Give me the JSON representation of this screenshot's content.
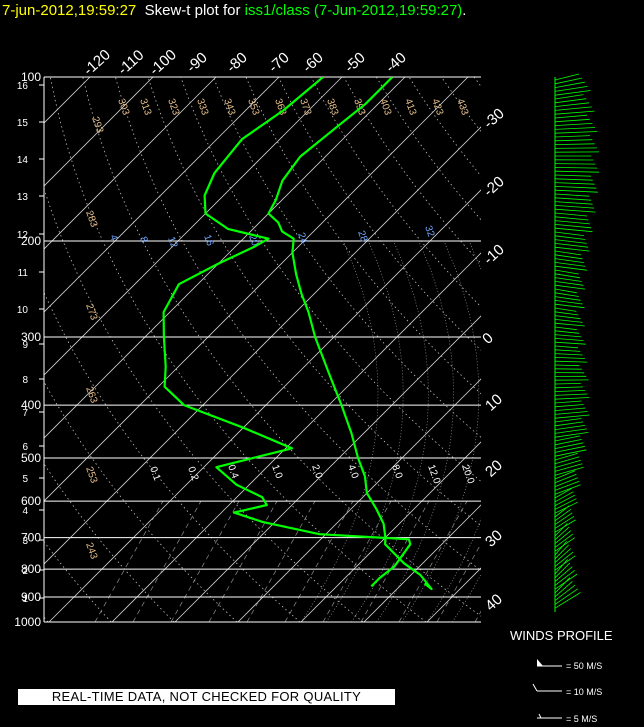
{
  "title": {
    "date": "7-jun-2012,19:59:27",
    "prefix": "Skew-t plot for",
    "station": "iss1/class (7-Jun-2012,19:59:27)",
    "suffix": "."
  },
  "disclaimer": "REAL-TIME DATA, NOT CHECKED FOR QUALITY",
  "winds_legend": {
    "title": "WINDS PROFILE",
    "items": [
      "= 50 M/S",
      "= 10 M/S",
      "= 5 M/S"
    ]
  },
  "colors": {
    "background": "#000000",
    "profile": "#00ff00",
    "title_date": "#ffff00",
    "pressure_label": "#ffffff",
    "height_label": "#ffffff",
    "dry_adiabat_label": "#e8c08a",
    "moist_adiabat_label": "#e8c08a",
    "mixing_ratio_label": "#6fa8ff"
  },
  "chart_data": {
    "type": "skew-t",
    "pressure_axis": {
      "label_values": [
        100,
        200,
        300,
        400,
        500,
        600,
        700,
        800,
        900,
        1000
      ],
      "labels": [
        "100",
        "200",
        "300",
        "400",
        "500",
        "600",
        "700",
        "800",
        "900",
        "1000"
      ],
      "scale": "log"
    },
    "height_axis_km": {
      "labels": [
        "16",
        "15",
        "14",
        "13",
        "12",
        "11",
        "10",
        "9",
        "8",
        "7",
        "6",
        "5",
        "4",
        "3",
        "2",
        "1"
      ],
      "values": [
        16,
        15,
        14,
        13,
        12,
        11,
        10,
        9,
        8,
        7,
        6,
        5,
        4,
        3,
        2,
        1
      ]
    },
    "temperature_ticks": {
      "top": [
        -120,
        -110,
        -100,
        -90,
        -80,
        -70,
        -60,
        -50,
        -40
      ],
      "top_labels": [
        "-120",
        "-110",
        "-100",
        "-90",
        "-80",
        "-70",
        "-60",
        "-50",
        "-40"
      ],
      "right": [
        -30,
        -20,
        -10,
        0,
        10,
        20,
        30,
        40
      ],
      "right_labels": [
        "-30",
        "-20",
        "-10",
        "0",
        "10",
        "20",
        "30",
        "40"
      ]
    },
    "dry_adiabats_K": {
      "values": [
        243,
        253,
        263,
        273,
        283,
        293,
        303,
        313,
        323,
        333,
        343,
        353,
        363,
        373,
        383,
        393,
        403,
        413,
        423,
        433
      ],
      "top_labels": [
        "293",
        "303",
        "313",
        "323",
        "333",
        "343",
        "353",
        "363",
        "373",
        "383",
        "393",
        "403",
        "413",
        "423",
        "433"
      ],
      "left_labels": [
        "283",
        "273",
        "263",
        "253",
        "243"
      ]
    },
    "mixing_ratio_top": {
      "values": [
        4,
        8,
        12,
        16,
        20,
        24,
        28,
        32
      ],
      "labels": [
        "4",
        "8",
        "12",
        "16",
        "20",
        "24",
        "28",
        "32"
      ]
    },
    "mixing_ratio_mid": {
      "labels": [
        "0.1",
        "0.2",
        "0.4",
        "1.0",
        "2.0",
        "4.0",
        "8.0",
        "12.0",
        "20.0"
      ]
    },
    "temperature_profile": [
      {
        "p": 850,
        "t": 23.5
      },
      {
        "p": 870,
        "t": 25.5
      },
      {
        "p": 820,
        "t": 21.5
      },
      {
        "p": 780,
        "t": 17
      },
      {
        "p": 720,
        "t": 11
      },
      {
        "p": 700,
        "t": 10
      },
      {
        "p": 660,
        "t": 7.5
      },
      {
        "p": 620,
        "t": 4
      },
      {
        "p": 580,
        "t": 0
      },
      {
        "p": 540,
        "t": -3
      },
      {
        "p": 500,
        "t": -7
      },
      {
        "p": 450,
        "t": -12
      },
      {
        "p": 400,
        "t": -18
      },
      {
        "p": 350,
        "t": -25
      },
      {
        "p": 300,
        "t": -33
      },
      {
        "p": 270,
        "t": -38
      },
      {
        "p": 250,
        "t": -42
      },
      {
        "p": 230,
        "t": -46
      },
      {
        "p": 210,
        "t": -50
      },
      {
        "p": 198,
        "t": -52
      },
      {
        "p": 192,
        "t": -55
      },
      {
        "p": 185,
        "t": -57
      },
      {
        "p": 178,
        "t": -60
      },
      {
        "p": 168,
        "t": -61
      },
      {
        "p": 155,
        "t": -63
      },
      {
        "p": 140,
        "t": -64
      },
      {
        "p": 125,
        "t": -63
      },
      {
        "p": 112,
        "t": -62
      },
      {
        "p": 100,
        "t": -62
      }
    ],
    "dewpoint_profile": [
      {
        "p": 860,
        "t": 15.5
      },
      {
        "p": 830,
        "t": 15.5
      },
      {
        "p": 790,
        "t": 16
      },
      {
        "p": 720,
        "t": 15
      },
      {
        "p": 705,
        "t": 14
      },
      {
        "p": 690,
        "t": -1
      },
      {
        "p": 655,
        "t": -12
      },
      {
        "p": 630,
        "t": -18
      },
      {
        "p": 610,
        "t": -14
      },
      {
        "p": 590,
        "t": -16
      },
      {
        "p": 560,
        "t": -22
      },
      {
        "p": 520,
        "t": -28
      },
      {
        "p": 480,
        "t": -19
      },
      {
        "p": 440,
        "t": -30
      },
      {
        "p": 400,
        "t": -43
      },
      {
        "p": 370,
        "t": -49
      },
      {
        "p": 340,
        "t": -52
      },
      {
        "p": 300,
        "t": -57
      },
      {
        "p": 270,
        "t": -61
      },
      {
        "p": 240,
        "t": -63
      },
      {
        "p": 220,
        "t": -60
      },
      {
        "p": 205,
        "t": -57
      },
      {
        "p": 198,
        "t": -56
      },
      {
        "p": 190,
        "t": -64
      },
      {
        "p": 178,
        "t": -70
      },
      {
        "p": 165,
        "t": -73
      },
      {
        "p": 150,
        "t": -75
      },
      {
        "p": 130,
        "t": -76
      },
      {
        "p": 115,
        "t": -74
      },
      {
        "p": 100,
        "t": -73
      }
    ]
  }
}
